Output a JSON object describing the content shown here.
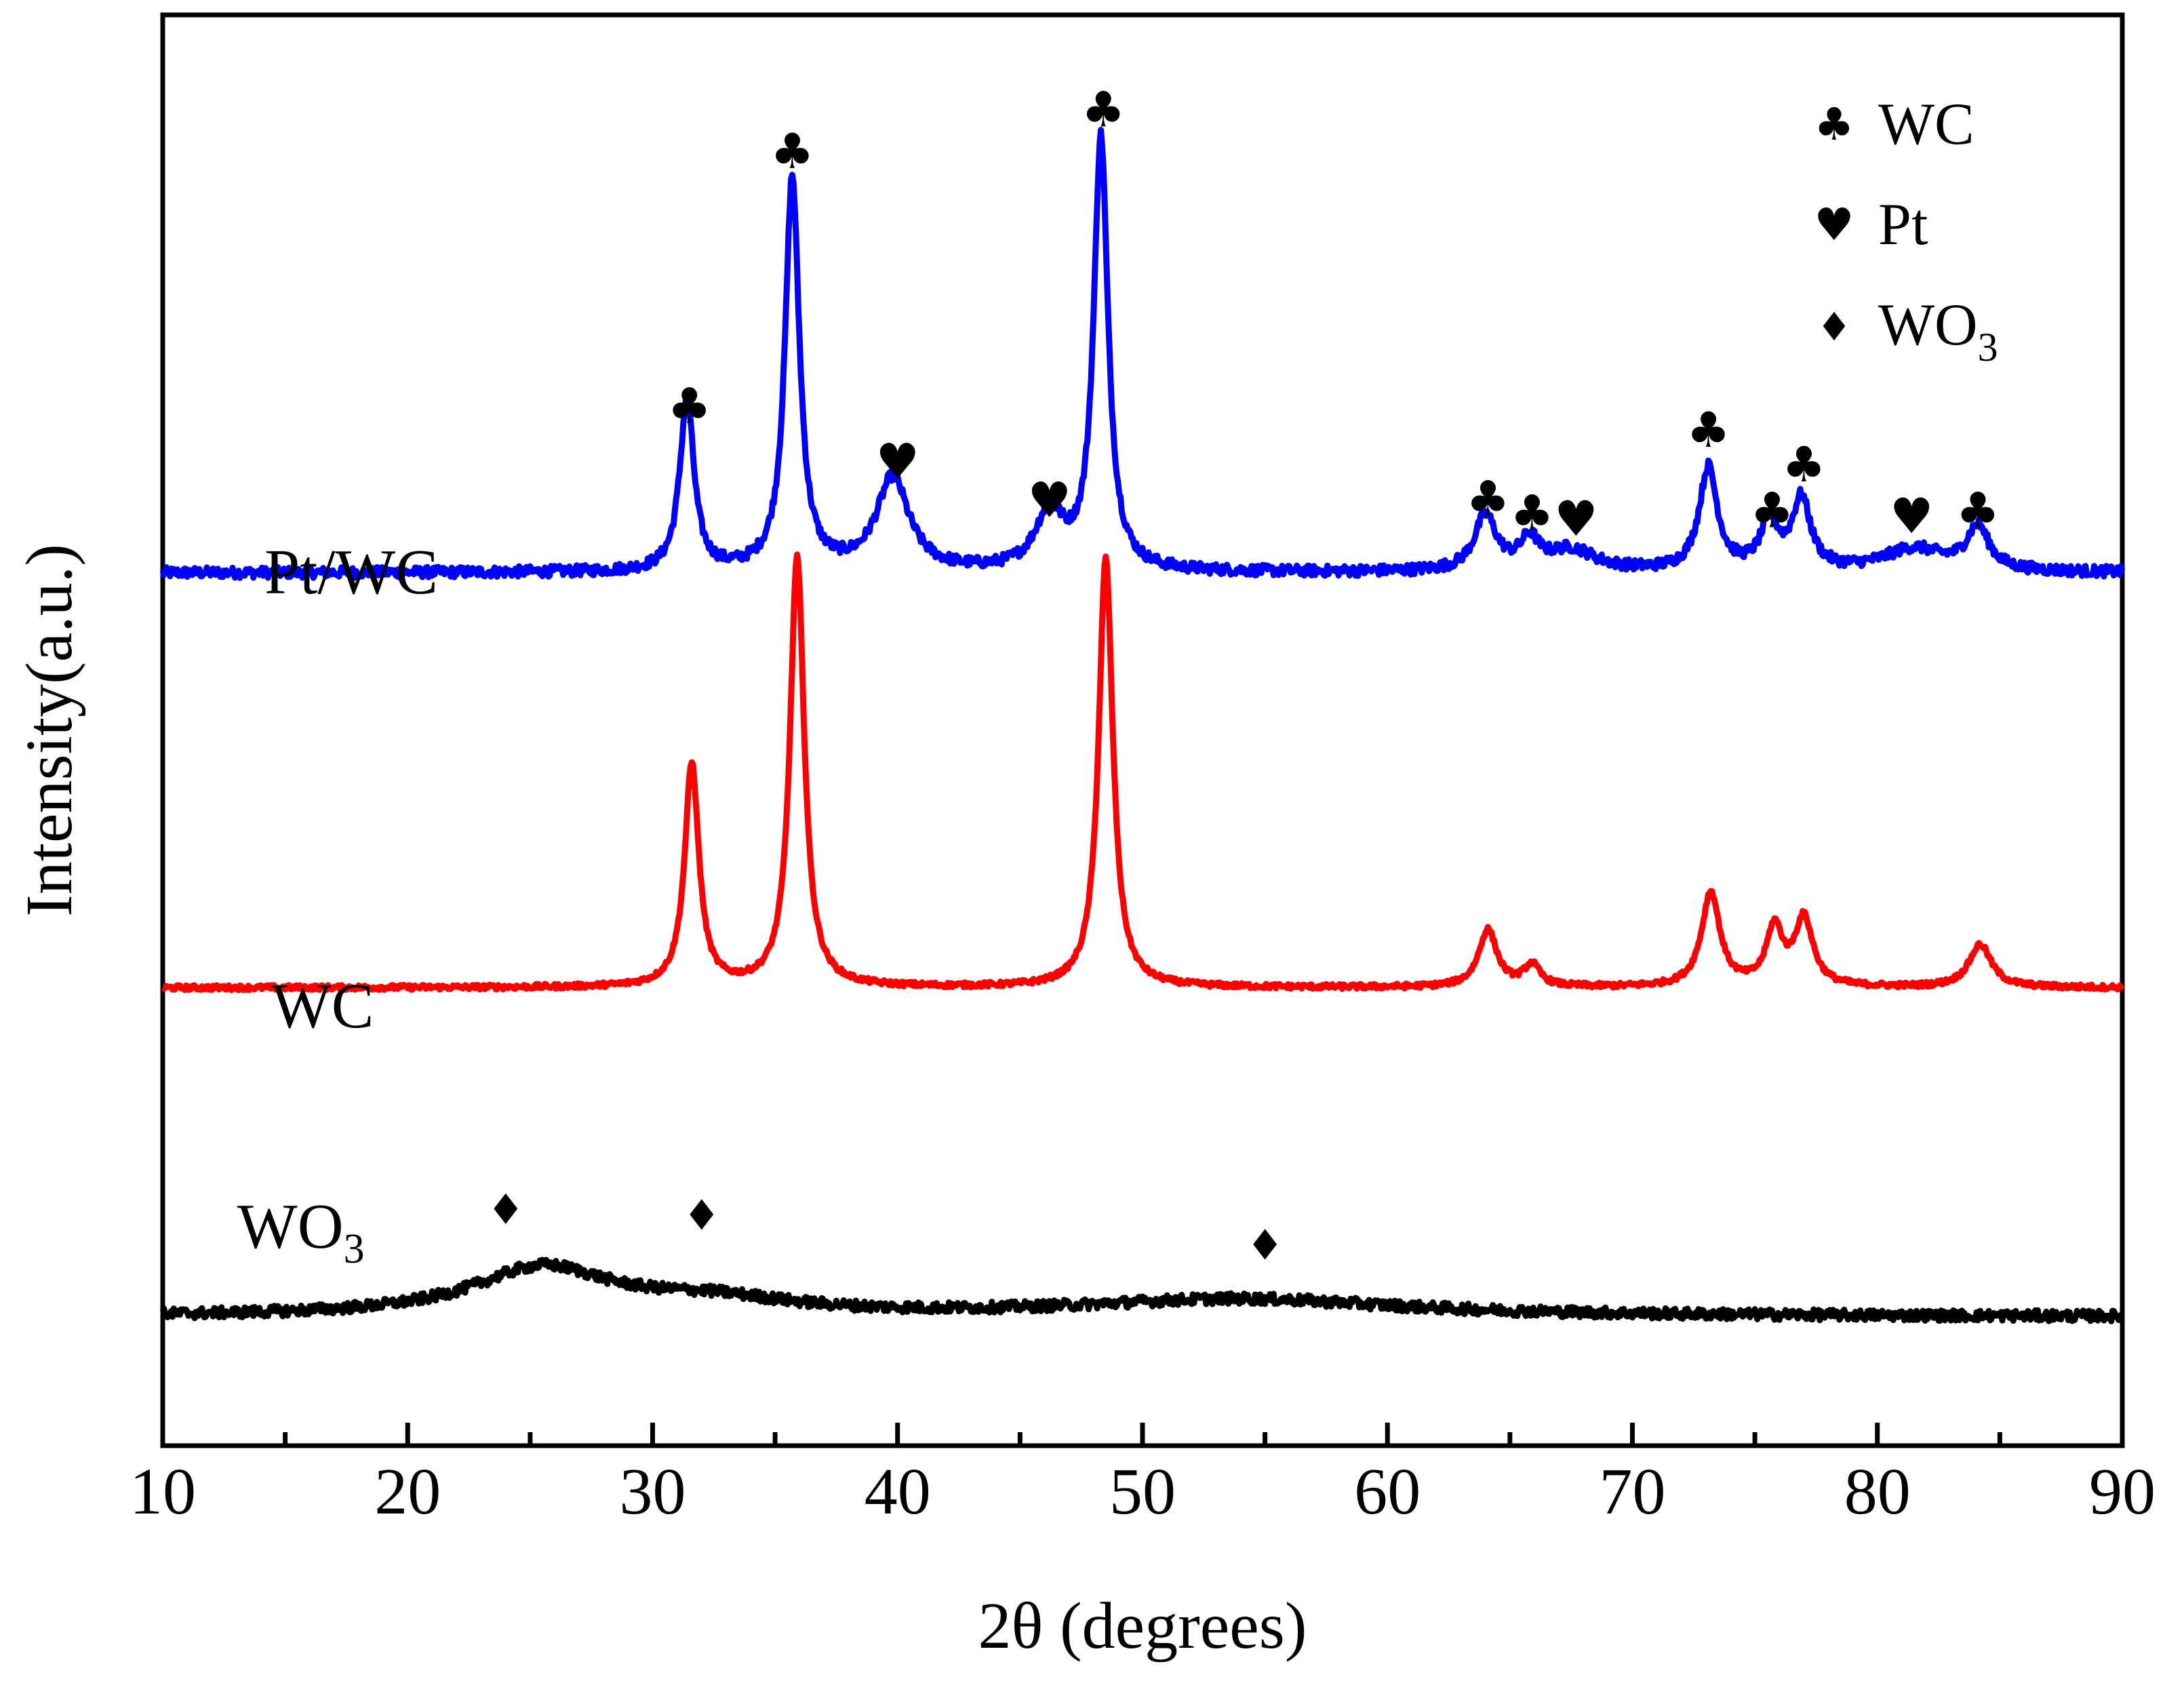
{
  "chart_data": {
    "type": "line",
    "title": "",
    "xlabel": "2θ (degrees)",
    "ylabel": "Intensity(a.u.)",
    "xlim": [
      10,
      90
    ],
    "ylim": [
      0,
      100
    ],
    "xticks": [
      10,
      20,
      30,
      40,
      50,
      60,
      70,
      80,
      90
    ],
    "xtick_labels": [
      "10",
      "20",
      "30",
      "40",
      "50",
      "60",
      "70",
      "80",
      "90"
    ],
    "grid": false,
    "series": [
      {
        "name": "Pt/WC",
        "color": "#0000ff",
        "baseline": 61,
        "peaks": [
          {
            "x": 31.4,
            "h": 12.0,
            "w": 0.35
          },
          {
            "x": 35.7,
            "h": 27.5,
            "w": 0.35
          },
          {
            "x": 39.8,
            "h": 6.5,
            "w": 0.8
          },
          {
            "x": 46.2,
            "h": 4.0,
            "w": 0.7
          },
          {
            "x": 48.3,
            "h": 30.2,
            "w": 0.35
          },
          {
            "x": 64.0,
            "h": 3.8,
            "w": 0.55
          },
          {
            "x": 65.8,
            "h": 2.0,
            "w": 0.45
          },
          {
            "x": 67.5,
            "h": 1.5,
            "w": 1.2
          },
          {
            "x": 73.1,
            "h": 7.2,
            "w": 0.45
          },
          {
            "x": 75.6,
            "h": 3.2,
            "w": 0.45
          },
          {
            "x": 76.9,
            "h": 4.9,
            "w": 0.45
          },
          {
            "x": 81.5,
            "h": 1.6,
            "w": 1.5
          },
          {
            "x": 84.1,
            "h": 3.0,
            "w": 0.55
          }
        ]
      },
      {
        "name": "WC",
        "color": "#ff0000",
        "baseline": 32,
        "peaks": [
          {
            "x": 31.6,
            "h": 15.6,
            "w": 0.35
          },
          {
            "x": 35.9,
            "h": 30.0,
            "w": 0.35
          },
          {
            "x": 48.5,
            "h": 30.0,
            "w": 0.35
          },
          {
            "x": 64.1,
            "h": 4.0,
            "w": 0.45
          },
          {
            "x": 65.9,
            "h": 1.5,
            "w": 0.4
          },
          {
            "x": 73.2,
            "h": 6.6,
            "w": 0.45
          },
          {
            "x": 75.8,
            "h": 4.0,
            "w": 0.4
          },
          {
            "x": 77.0,
            "h": 4.7,
            "w": 0.45
          },
          {
            "x": 84.2,
            "h": 3.0,
            "w": 0.55
          }
        ]
      },
      {
        "name": "WO3",
        "color": "#000000",
        "baseline": 9,
        "peaks": [
          {
            "x": 25.5,
            "h": 3.3,
            "w": 3.5
          },
          {
            "x": 32.5,
            "h": 1.0,
            "w": 4.0
          },
          {
            "x": 54.0,
            "h": 1.2,
            "w": 8.0
          }
        ]
      }
    ],
    "series_labels": [
      {
        "series": "Pt/WC",
        "text": "Pt/WC"
      },
      {
        "series": "WC",
        "text": "WC"
      },
      {
        "series": "WO3",
        "text": "WO",
        "subscript": "3"
      }
    ],
    "annotations": [
      {
        "marker": "♣",
        "x": 31.5,
        "y": 71.5
      },
      {
        "marker": "♣",
        "x": 35.7,
        "y": 89.3
      },
      {
        "marker": "♥",
        "x": 40.0,
        "y": 67.6
      },
      {
        "marker": "♥",
        "x": 46.2,
        "y": 64.9
      },
      {
        "marker": "♣",
        "x": 48.4,
        "y": 92.2
      },
      {
        "marker": "♣",
        "x": 64.1,
        "y": 65.0
      },
      {
        "marker": "♣",
        "x": 65.9,
        "y": 64.0
      },
      {
        "marker": "♥",
        "x": 67.7,
        "y": 63.6
      },
      {
        "marker": "♣",
        "x": 73.1,
        "y": 69.8
      },
      {
        "marker": "♣",
        "x": 75.7,
        "y": 64.2
      },
      {
        "marker": "♣",
        "x": 77.0,
        "y": 67.4
      },
      {
        "marker": "♥",
        "x": 81.4,
        "y": 63.8
      },
      {
        "marker": "♣",
        "x": 84.1,
        "y": 64.2
      },
      {
        "marker": "♦",
        "x": 24.0,
        "y": 15.5
      },
      {
        "marker": "♦",
        "x": 32.0,
        "y": 15.1
      },
      {
        "marker": "♦",
        "x": 55.0,
        "y": 13.0
      }
    ],
    "legend": {
      "location": "top-right",
      "entries": [
        {
          "marker": "♣",
          "label": "WC"
        },
        {
          "marker": "♥",
          "label": "Pt"
        },
        {
          "marker": "♦",
          "label": "WO",
          "subscript": "3"
        }
      ]
    }
  }
}
